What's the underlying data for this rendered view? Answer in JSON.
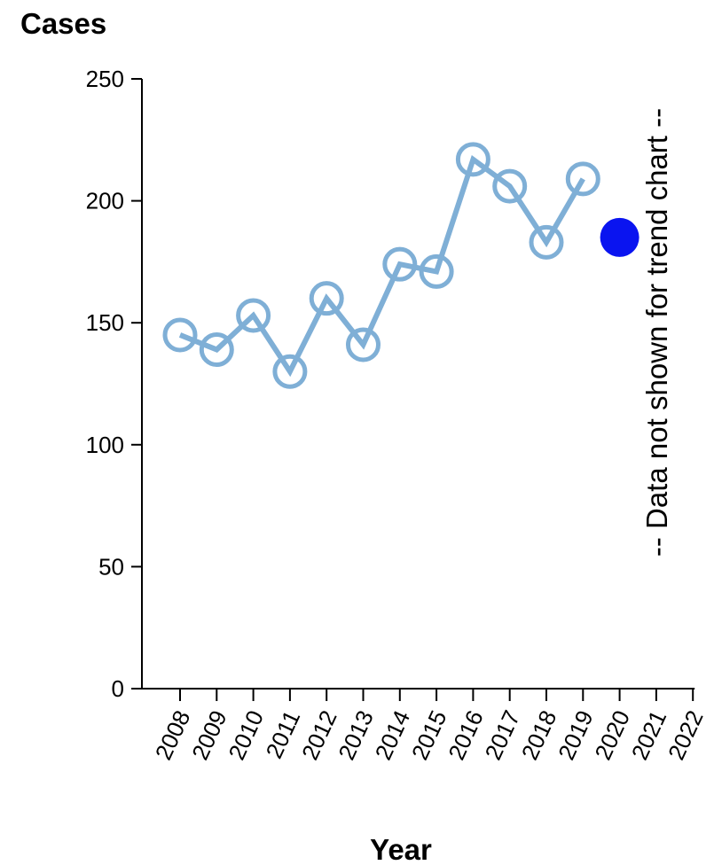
{
  "chart_data": {
    "type": "line",
    "ylabel": "Cases",
    "xlabel": "Year",
    "ylim": [
      0,
      250
    ],
    "yticks": [
      0,
      50,
      100,
      150,
      200,
      250
    ],
    "xticks": [
      "2008",
      "2009",
      "2010",
      "2011",
      "2012",
      "2013",
      "2014",
      "2015",
      "2016",
      "2017",
      "2018",
      "2019",
      "2020",
      "2021",
      "2022"
    ],
    "series": [
      {
        "x": [
          "2008",
          "2009",
          "2010",
          "2011",
          "2012",
          "2013",
          "2014",
          "2015",
          "2016",
          "2017",
          "2018",
          "2019"
        ],
        "values": [
          145,
          139,
          153,
          130,
          160,
          141,
          174,
          171,
          217,
          206,
          183,
          209
        ],
        "color": "#7fafd6"
      }
    ],
    "highlight_point": {
      "x": "2020",
      "value": 185,
      "color": "#0a14f0"
    },
    "annotation": "-- Data not shown for trend chart --"
  }
}
